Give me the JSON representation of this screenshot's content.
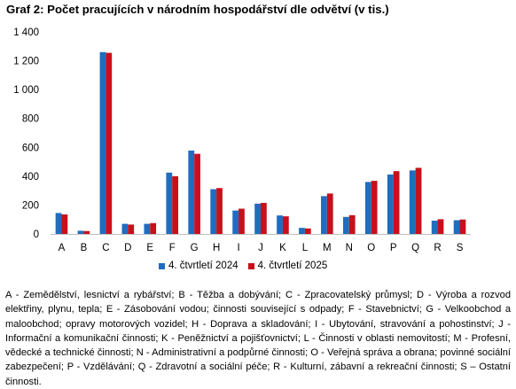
{
  "chart_data": {
    "type": "bar",
    "title": "Graf 2: Počet pracujících v národním hospodářství dle odvětví (v tis.)",
    "xlabel": "",
    "ylabel": "",
    "categories": [
      "A",
      "B",
      "C",
      "D",
      "E",
      "F",
      "G",
      "H",
      "I",
      "J",
      "K",
      "L",
      "M",
      "N",
      "O",
      "P",
      "Q",
      "R",
      "S"
    ],
    "ylim": [
      0,
      1400
    ],
    "yticks": [
      0,
      200,
      400,
      600,
      800,
      1000,
      1200,
      1400
    ],
    "ytick_labels": [
      "0",
      "200",
      "400",
      "600",
      "800",
      "1 000",
      "1 200",
      "1 400"
    ],
    "grid": false,
    "legend_position": "bottom",
    "series": [
      {
        "name": "4. čtvrtletí 2024",
        "color": "#1f6dc0",
        "values": [
          145,
          22,
          1260,
          70,
          70,
          425,
          578,
          310,
          162,
          210,
          128,
          42,
          262,
          118,
          360,
          412,
          440,
          92,
          95
        ]
      },
      {
        "name": "4. čtvrtletí 2025",
        "color": "#c8101b",
        "values": [
          135,
          20,
          1255,
          65,
          75,
          400,
          555,
          318,
          175,
          215,
          122,
          38,
          280,
          130,
          368,
          435,
          458,
          102,
          100
        ]
      }
    ]
  },
  "footnote": "A - Zemědělství, lesnictví a rybářství; B - Těžba a dobývání; C - Zpracovatelský průmysl; D - Výroba a rozvod elektřiny, plynu, tepla; E - Zásobování vodou; činnosti související s odpady; F - Stavebnictví; G - Velkoobchod a maloobchod; opravy motorových vozidel; H - Doprava a skladování; I - Ubytování, stravování a pohostinství; J - Informační a komunikační činnosti; K - Peněžnictví a pojišťovnictví; L - Činnosti v oblasti nemovitostí; M - Profesní, vědecké a technické činnosti; N - Administrativní a podpůrné činnosti; O - Veřejná správa a obrana; povinné sociální zabezpečení; P - Vzdělávání; Q - Zdravotní a sociální péče; R - Kulturní, zábavní a rekreační činnosti; S – Ostatní činnosti."
}
